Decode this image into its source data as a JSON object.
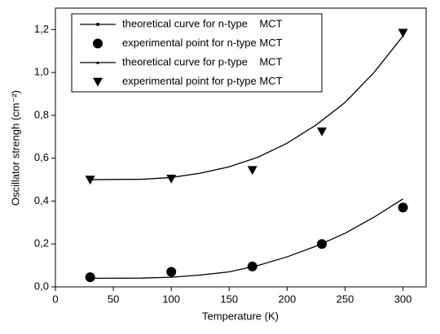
{
  "chart_data": {
    "type": "line",
    "x_label": "Temperature (K)",
    "y_label": "Oscillator strengh (cm⁻²)",
    "xlim": [
      0,
      320
    ],
    "xticks": [
      0,
      50,
      100,
      150,
      200,
      250,
      300
    ],
    "ylim": [
      0,
      1.3
    ],
    "yticks": [
      {
        "value": 0,
        "label": "0,0"
      },
      {
        "value": 0.2,
        "label": "0,2"
      },
      {
        "value": 0.4,
        "label": "0,4"
      },
      {
        "value": 0.6,
        "label": "0,6"
      },
      {
        "value": 0.8,
        "label": "0,8"
      },
      {
        "value": 1.0,
        "label": "1,0"
      },
      {
        "value": 1.2,
        "label": "1,2"
      }
    ],
    "legend": "upper left",
    "series": [
      {
        "name": "theoretical curve for n-type    MCT",
        "color": "#000000",
        "style": "line",
        "marker": "dot",
        "x": [
          30,
          75,
          100,
          125,
          150,
          175,
          200,
          225,
          250,
          275,
          300
        ],
        "values": [
          0.04,
          0.041,
          0.045,
          0.055,
          0.07,
          0.1,
          0.14,
          0.19,
          0.25,
          0.325,
          0.41
        ]
      },
      {
        "name": "experimental point for n-type MCT",
        "color": "#000000",
        "style": "marker",
        "marker": "circle",
        "x": [
          30,
          100,
          170,
          230,
          300
        ],
        "values": [
          0.045,
          0.07,
          0.095,
          0.2,
          0.37
        ]
      },
      {
        "name": "theoretical curve for p-type    MCT",
        "color": "#000000",
        "style": "line",
        "marker": "triangle",
        "x": [
          30,
          75,
          100,
          125,
          150,
          175,
          200,
          225,
          250,
          275,
          300
        ],
        "values": [
          0.5,
          0.502,
          0.51,
          0.53,
          0.56,
          0.605,
          0.67,
          0.755,
          0.86,
          1.0,
          1.17
        ]
      },
      {
        "name": "experimental point for p-type MCT",
        "color": "#000000",
        "style": "marker",
        "marker": "triangle-down",
        "x": [
          30,
          100,
          170,
          230,
          300
        ],
        "values": [
          0.5,
          0.505,
          0.545,
          0.725,
          1.185
        ]
      }
    ]
  }
}
